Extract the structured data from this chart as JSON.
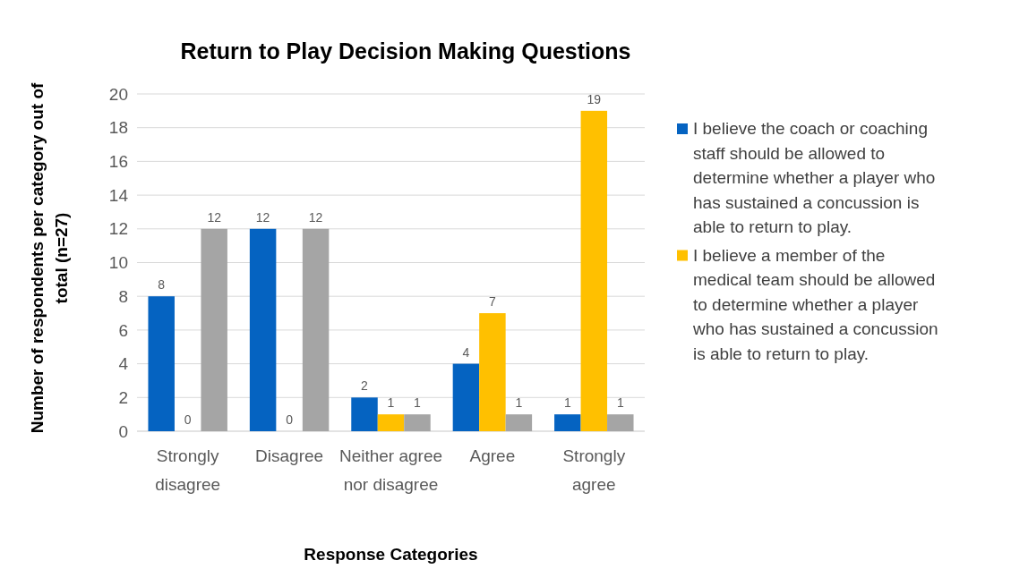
{
  "chart_data": {
    "type": "bar",
    "title": "Return to Play Decision Making Questions",
    "xlabel": "Response Categories",
    "ylabel": "Number of respondents per category out of total (n=27)",
    "categories": [
      "Strongly disagree",
      "Disagree",
      "Neither agree nor disagree",
      "Agree",
      "Strongly agree"
    ],
    "series": [
      {
        "name": "I believe the coach or coaching staff should be allowed to determine whether a player who has sustained a concussion is able to return to play.",
        "color": "#0563c1",
        "values": [
          8,
          12,
          2,
          4,
          1
        ]
      },
      {
        "name": "I believe a member of the medical team should be allowed to determine whether a player who has sustained a concussion is able to return to play.",
        "color": "#ffc000",
        "values": [
          0,
          0,
          1,
          7,
          19
        ]
      },
      {
        "color": "#a5a5a5",
        "values": [
          12,
          12,
          1,
          1,
          1
        ]
      }
    ],
    "ylim": [
      0,
      20
    ],
    "yticks": [
      0,
      2,
      4,
      6,
      8,
      10,
      12,
      14,
      16,
      18,
      20
    ],
    "grid": "y",
    "data_labels": true,
    "legend": "right"
  }
}
